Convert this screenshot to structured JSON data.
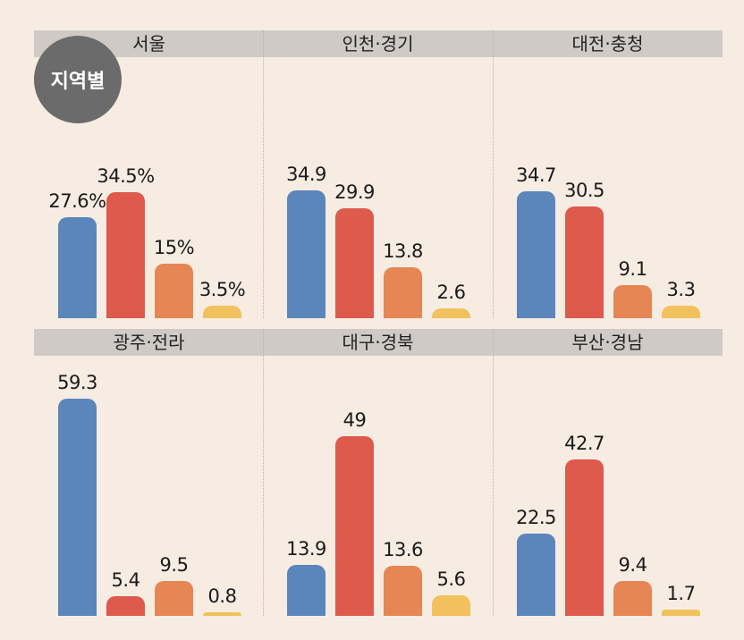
{
  "badge": "지역별",
  "colors": [
    "#5a86bb",
    "#dd5a4c",
    "#e58654",
    "#f0c15c"
  ],
  "chart_data": {
    "type": "bar",
    "title": "",
    "panels": [
      {
        "name": "서울",
        "values": [
          27.6,
          34.5,
          15,
          3.5
        ],
        "labels": [
          "27.6%",
          "34.5%",
          "15%",
          "3.5%"
        ]
      },
      {
        "name": "인천·경기",
        "values": [
          34.9,
          29.9,
          13.8,
          2.6
        ],
        "labels": [
          "34.9",
          "29.9",
          "13.8",
          "2.6"
        ]
      },
      {
        "name": "대전·충청",
        "values": [
          34.7,
          30.5,
          9.1,
          3.3
        ],
        "labels": [
          "34.7",
          "30.5",
          "9.1",
          "3.3"
        ]
      },
      {
        "name": "광주·전라",
        "values": [
          59.3,
          5.4,
          9.5,
          0.8
        ],
        "labels": [
          "59.3",
          "5.4",
          "9.5",
          "0.8"
        ]
      },
      {
        "name": "대구·경북",
        "values": [
          13.9,
          49,
          13.6,
          5.6
        ],
        "labels": [
          "13.9",
          "49",
          "13.6",
          "5.6"
        ]
      },
      {
        "name": "부산·경남",
        "values": [
          22.5,
          42.7,
          9.4,
          1.7
        ],
        "labels": [
          "22.5",
          "42.7",
          "9.4",
          "1.7"
        ]
      }
    ]
  }
}
